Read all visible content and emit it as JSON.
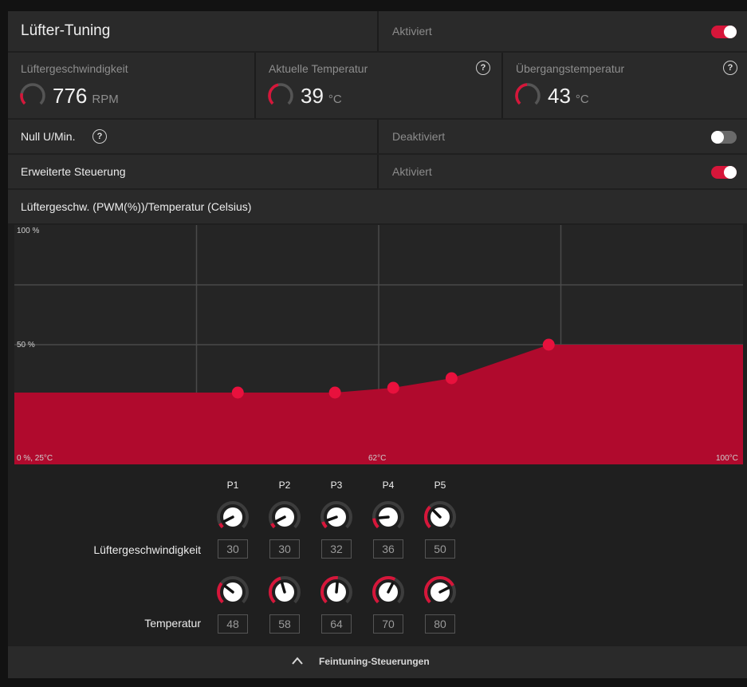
{
  "header": {
    "title": "Lüfter-Tuning",
    "status": "Aktiviert",
    "enabled": true
  },
  "metrics": [
    {
      "label": "Lüftergeschwindigkeit",
      "value": "776",
      "unit": "RPM",
      "help": false,
      "gauge_level": 0.15
    },
    {
      "label": "Aktuelle Temperatur",
      "value": "39",
      "unit": "°C",
      "help": true,
      "gauge_level": 0.39
    },
    {
      "label": "Übergangstemperatur",
      "value": "43",
      "unit": "°C",
      "help": true,
      "gauge_level": 0.43
    }
  ],
  "zero_rpm": {
    "label": "Null U/Min.",
    "status": "Deaktiviert",
    "enabled": false,
    "help_glyph": "?"
  },
  "advanced": {
    "label": "Erweiterte Steuerung",
    "status": "Aktiviert",
    "enabled": true
  },
  "curve_title": "Lüftergeschw. (PWM(%))/Temperatur (Celsius)",
  "chart_data": {
    "type": "area",
    "x_range": [
      25,
      100
    ],
    "y_range": [
      0,
      100
    ],
    "tick_labels": {
      "top": "100 %",
      "mid": "50 %",
      "origin": "0 %, 25°C",
      "x_mid": "62°C",
      "x_max": "100°C"
    },
    "points": [
      {
        "x": 48,
        "y": 30
      },
      {
        "x": 58,
        "y": 30
      },
      {
        "x": 64,
        "y": 32
      },
      {
        "x": 70,
        "y": 36
      },
      {
        "x": 80,
        "y": 50
      }
    ],
    "colors": {
      "fill": "#b00a2d",
      "point": "#e8113d",
      "grid": "#4a4a4a"
    }
  },
  "points_table": {
    "headers": [
      "P1",
      "P2",
      "P3",
      "P4",
      "P5"
    ],
    "speed_label": "Lüftergeschwindigkeit",
    "speed_values": [
      "30",
      "30",
      "32",
      "36",
      "50"
    ],
    "temp_label": "Temperatur",
    "temp_values": [
      "48",
      "58",
      "64",
      "70",
      "80"
    ]
  },
  "footer": {
    "label": "Feintuning-Steuerungen",
    "icon": "chevron-up-icon"
  },
  "colors": {
    "accent": "#d6163a"
  }
}
